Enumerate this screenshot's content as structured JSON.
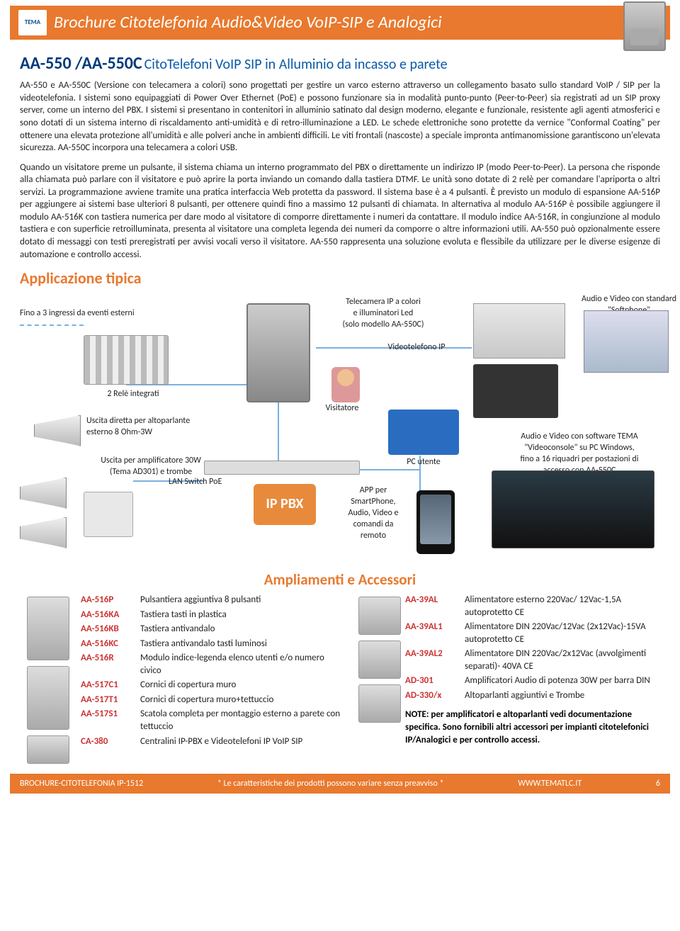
{
  "header": {
    "logo_text": "TEMA",
    "title": "Brochure Citotelefonia Audio&Video VoIP-SIP e Analogici"
  },
  "title": {
    "code": "AA-550 /AA-550C",
    "rest": "CitoTelefoni VoIP SIP in Alluminio da incasso e parete"
  },
  "para1": "AA-550 e AA-550C (Versione con telecamera a colori) sono progettati per gestire un varco esterno attraverso un collegamento basato sullo standard VoIP / SIP per la videotelefonia. I sistemi sono equipaggiati di Power Over Ethernet (PoE) e possono funzionare sia in modalità punto-punto (Peer-to-Peer) sia registrati ad un SIP proxy server, come un interno del PBX. I sistemi si presentano in contenitori in alluminio satinato dal design moderno, elegante e funzionale, resistente agli agenti atmosferici e sono dotati di un sistema interno di riscaldamento anti-umidità e di retro-illuminazione a LED. Le schede elettroniche sono protette da vernice \"Conformal Coating\" per ottenere una elevata protezione all'umidità e alle polveri anche in ambienti difficili. Le viti frontali (nascoste) a speciale impronta antimanomissione garantiscono un'elevata sicurezza. AA-550C incorpora una telecamera a colori USB.",
  "para2": "Quando un visitatore preme un pulsante, il sistema chiama un interno programmato del PBX o direttamente un indirizzo IP (modo Peer-to-Peer). La persona che risponde alla chiamata può parlare con il visitatore e può aprire la porta inviando un comando dalla tastiera DTMF. Le unità sono dotate di 2 relè per comandare l'apriporta o altri servizi. La programmazione avviene tramite una pratica interfaccia Web protetta da password. Il sistema base è a 4 pulsanti. È previsto un modulo di espansione AA-516P per aggiungere ai sistemi base ulteriori 8 pulsanti, per ottenere quindi fino a massimo 12 pulsanti di chiamata. In alternativa al modulo AA-516P è possibile aggiungere il modulo AA-516K con tastiera numerica per dare modo al visitatore di comporre direttamente i numeri da contattare. Il modulo indice AA-516R, in congiunzione al modulo tastiera e con superficie retroilluminata, presenta al visitatore una completa legenda dei numeri da comporre o altre informazioni utili. AA-550 può opzionalmente essere dotato di messaggi con testi preregistrati per avvisi vocali verso il visitatore. AA-550 rappresenta una soluzione evoluta e flessibile da utilizzare per le diverse esigenze di automazione e controllo accessi.",
  "app": {
    "heading": "Applicazione tipica",
    "l_inputs": "Fino a 3 ingressi da eventi esterni",
    "l_relays": "2 Relè integrati",
    "l_camera": "Telecamera IP a colori\ne illuminatori Led\n(solo modello AA-550C)",
    "l_videophone": "Videotelefono IP",
    "l_visitor": "Visitatore",
    "l_softphone": "Audio e Video con standard\n\"Softphone\"",
    "l_speaker": "Uscita diretta per altoparlante esterno 8 Ohm-3W",
    "l_pc": "PC utente",
    "l_amp": "Uscita per amplificatore 30W\n(Tema AD301) e trombe",
    "l_switch": "LAN Switch PoE",
    "l_ippbx": "IP PBX",
    "l_app": "APP per\nSmartPhone,\nAudio, Video e\ncomandi da\nremoto",
    "l_console": "Audio e Video con software TEMA\n\"Videoconsole\" su PC Windows,\nfino a 16 riquadri per postazioni di\naccesso con AA-550C"
  },
  "acc": {
    "heading": "Ampliamenti e Accessori",
    "left": [
      {
        "code": "AA-516P",
        "desc": "Pulsantiera aggiuntiva 8 pulsanti"
      },
      {
        "code": "AA-516KA",
        "desc": "Tastiera tasti in plastica"
      },
      {
        "code": "AA-516KB",
        "desc": "Tastiera antivandalo"
      },
      {
        "code": "AA-516KC",
        "desc": "Tastiera antivandalo tasti luminosi"
      },
      {
        "code": "AA-516R",
        "desc": "Modulo indice-legenda elenco utenti e/o numero civico"
      },
      {
        "code": "AA-517C1",
        "desc": "Cornici di copertura muro"
      },
      {
        "code": "AA-517T1",
        "desc": "Cornici di copertura muro+tettuccio"
      },
      {
        "code": "AA-517S1",
        "desc": "Scatola completa per montaggio esterno a parete con tettuccio"
      },
      {
        "code": "CA-380",
        "desc": "Centralini IP-PBX e Videotelefoni IP VoIP SIP"
      }
    ],
    "right": [
      {
        "code": "AA-39AL",
        "desc": "Alimentatore esterno 220Vac/ 12Vac-1,5A autoprotetto CE"
      },
      {
        "code": "AA-39AL1",
        "desc": "Alimentatore DIN 220Vac/12Vac (2x12Vac)-15VA autoprotetto CE"
      },
      {
        "code": "AA-39AL2",
        "desc": "Alimentatore DIN 220Vac/2x12Vac (avvolgimenti separati)- 40VA CE"
      },
      {
        "code": "AD-301",
        "desc": "Amplificatori Audio di potenza 30W per barra DIN"
      },
      {
        "code": "AD-330/x",
        "desc": "Altoparlanti aggiuntivi e Trombe"
      }
    ],
    "note_bold": "NOTE: per amplificatori e altoparlanti vedi documentazione specifica. Sono fornibili altri accessori per impianti citotelefonici IP/Analogici e per controllo accessi."
  },
  "footer": {
    "left": "BROCHURE-CITOTELEFONIA IP-1512",
    "mid": "* Le caratteristiche dei prodotti possono variare senza preavviso *",
    "right": "WWW.TEMATLC.IT",
    "page": "6"
  },
  "colors": {
    "brand": "#e8792e",
    "title_code": "#003a7a",
    "title_rest": "#0a5aa8",
    "acc_code": "#c33"
  }
}
